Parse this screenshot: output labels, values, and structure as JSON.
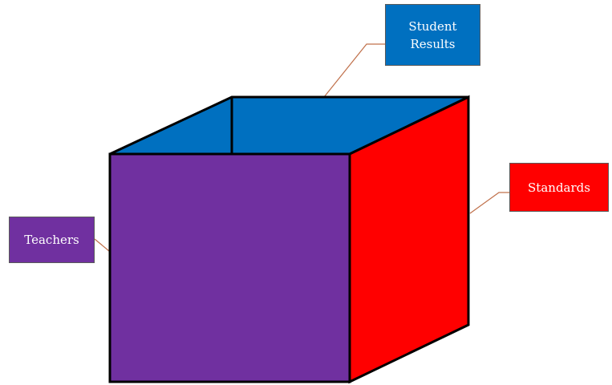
{
  "labels": {
    "student_results": {
      "line1": "Student",
      "line2": "Results"
    },
    "standards": "Standards",
    "teachers": "Teachers"
  },
  "colors": {
    "top_face": "#0070c0",
    "front_face": "#7030a0",
    "right_face": "#ff0000",
    "edge": "#000000",
    "leader_line": "#c0704a"
  }
}
